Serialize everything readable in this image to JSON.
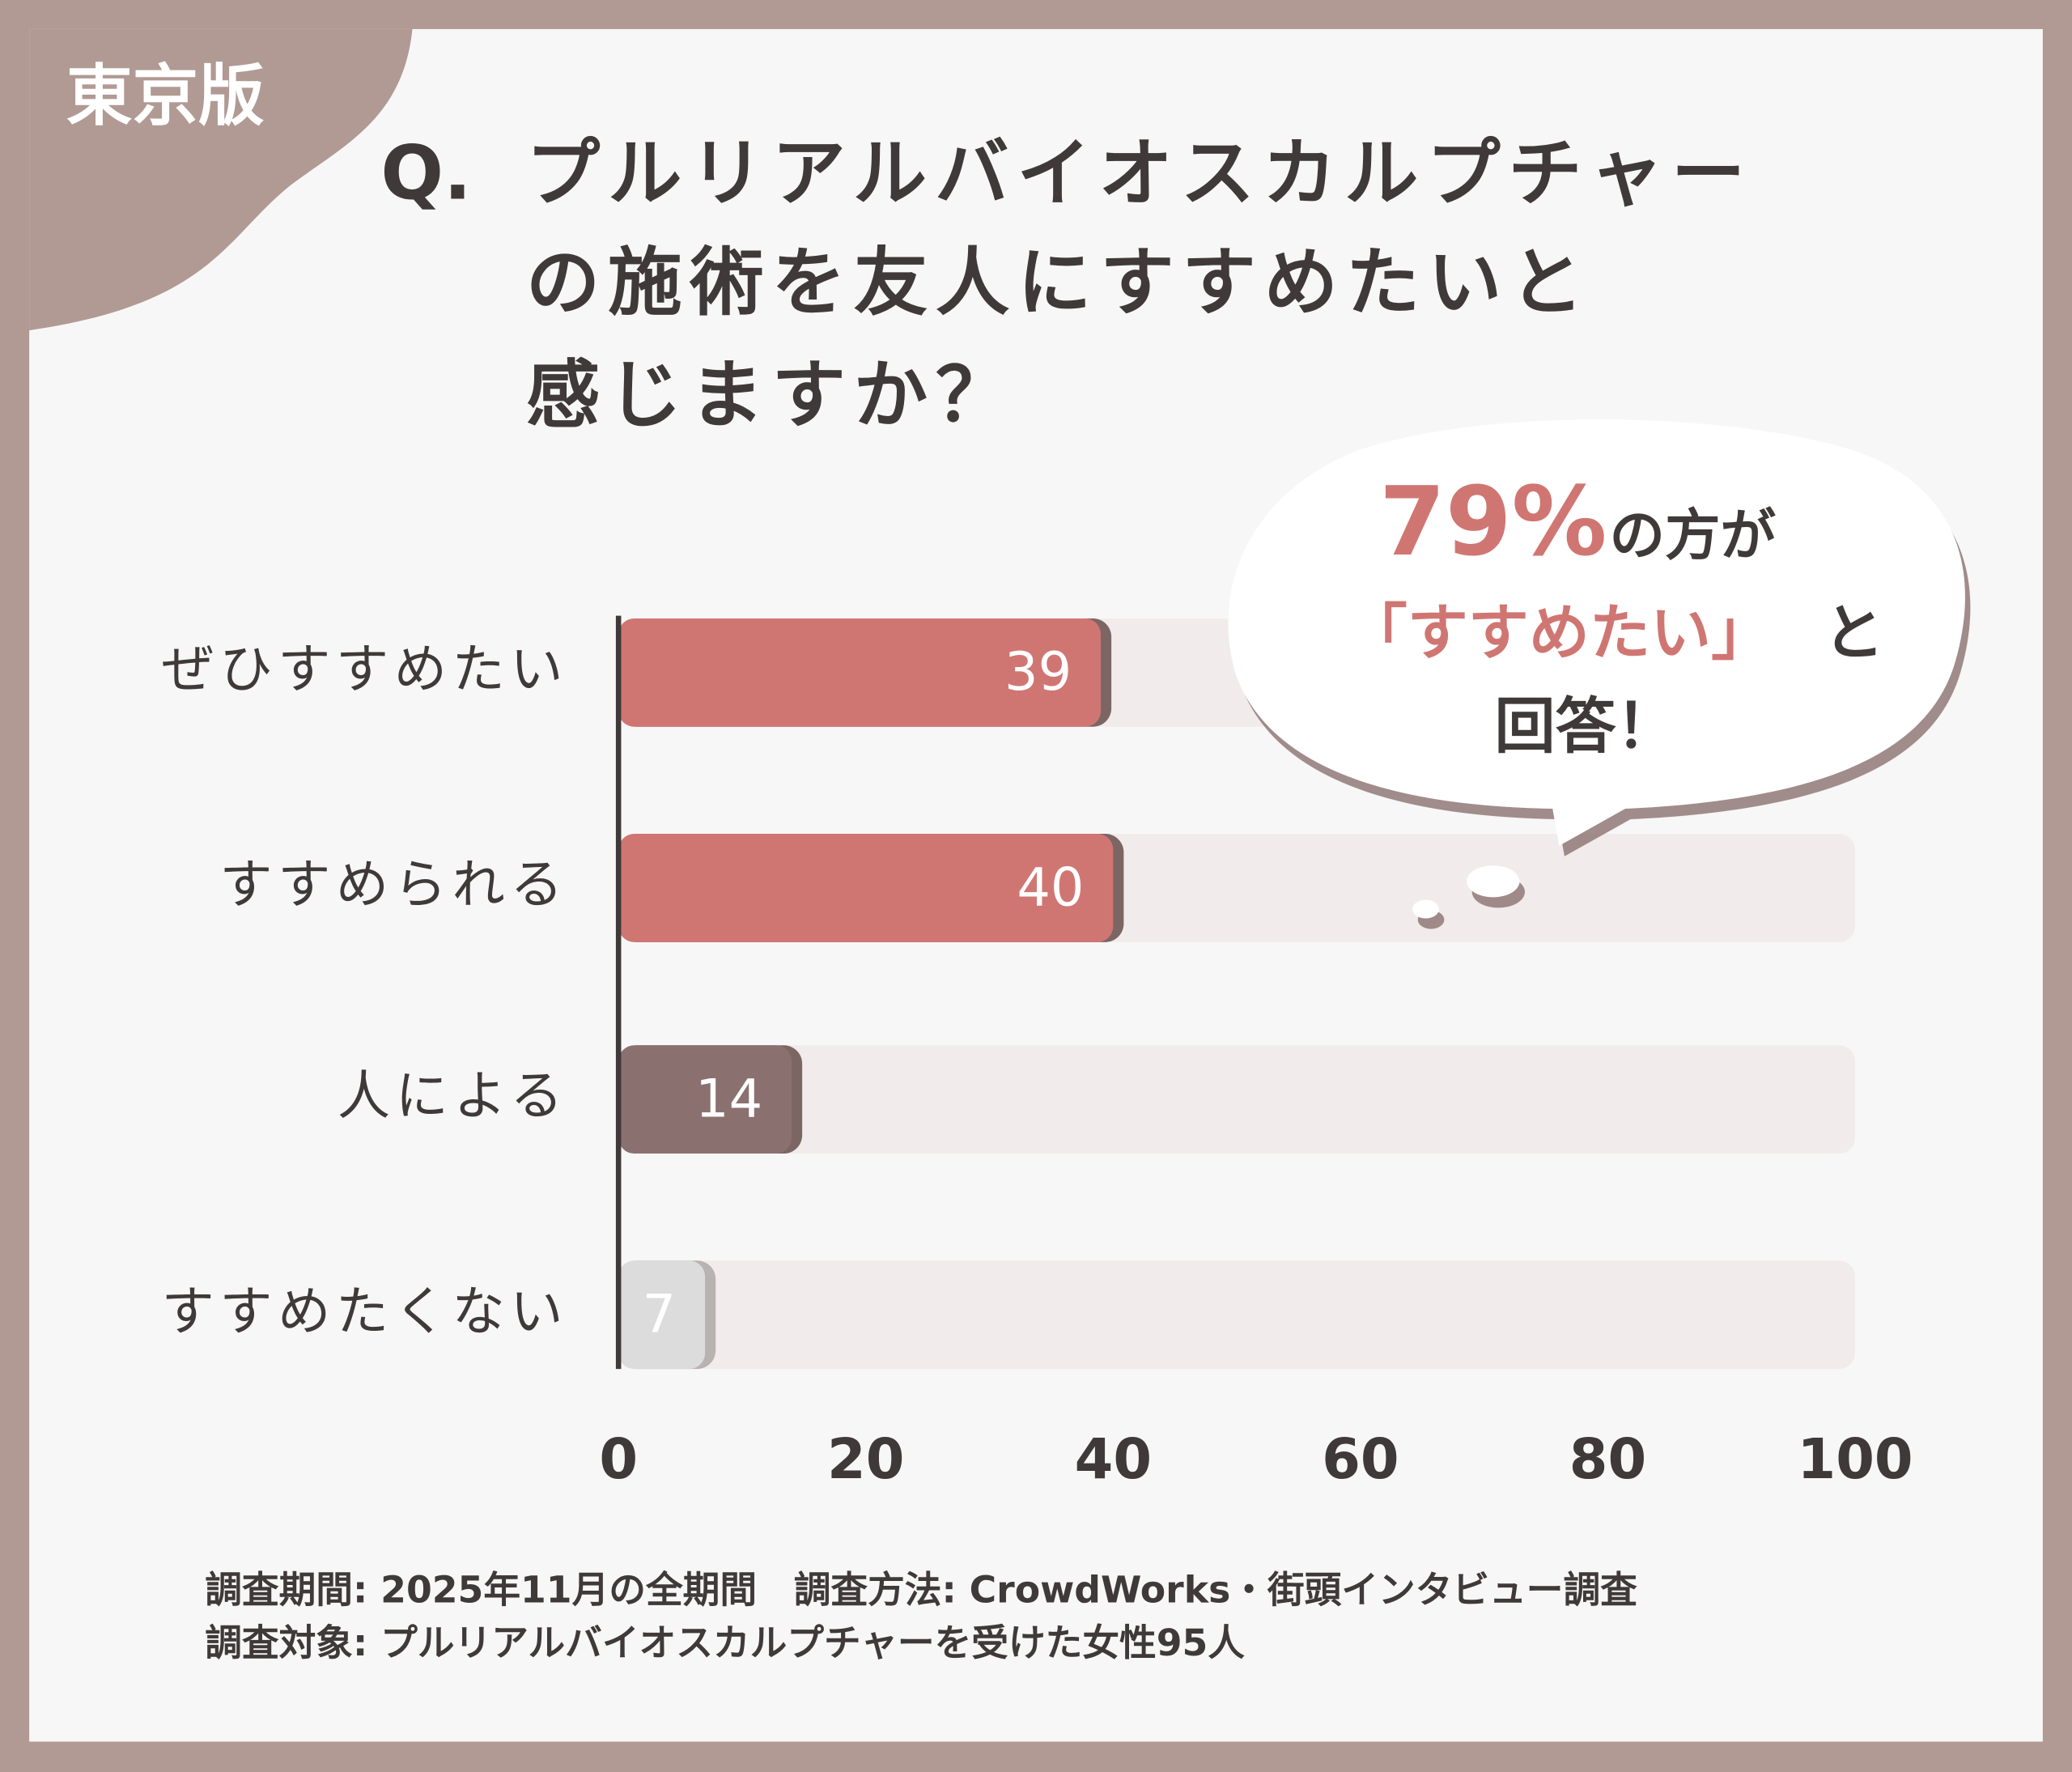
{
  "badge": "東京版",
  "chart_data": {
    "type": "bar",
    "orientation": "horizontal",
    "question_prefix": "Q.",
    "title": [
      "プルリアルバイオスカルプチャー",
      "の施術を友人にすすめたいと",
      "感じますか？"
    ],
    "categories": [
      "ぜひすすめたい",
      "すすめられる",
      "人による",
      "すすめたくない"
    ],
    "values": [
      39,
      40,
      14,
      7
    ],
    "colors": [
      "#d07672",
      "#d07672",
      "#8a7170",
      "#dcdcdc"
    ],
    "xlim": [
      0,
      100
    ],
    "xticks": [
      0,
      20,
      40,
      60,
      80,
      100
    ],
    "callout": {
      "highlight": "79%",
      "line1": "の方が",
      "quote": "「すすめたい」",
      "line2": "と",
      "line3": "回答！"
    }
  },
  "footer": [
    "調査期間:  2025年11月の全期間　調査方法: CrowdWorks・街頭インタビュー調査",
    "調査対象: プルリアルバイオスカルプチャーを受けた女性95人"
  ]
}
